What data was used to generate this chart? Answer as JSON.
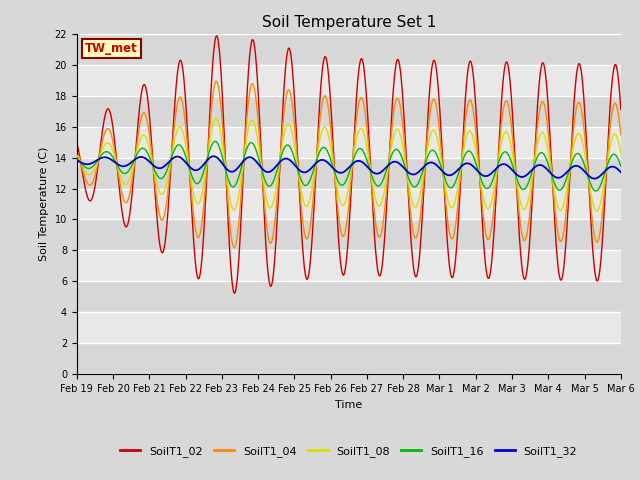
{
  "title": "Soil Temperature Set 1",
  "xlabel": "Time",
  "ylabel": "Soil Temperature (C)",
  "ylim": [
    0,
    22
  ],
  "yticks": [
    0,
    2,
    4,
    6,
    8,
    10,
    12,
    14,
    16,
    18,
    20,
    22
  ],
  "xtick_labels": [
    "Feb 19",
    "Feb 20",
    "Feb 21",
    "Feb 22",
    "Feb 23",
    "Feb 24",
    "Feb 25",
    "Feb 26",
    "Feb 27",
    "Feb 28",
    "Mar 1",
    "Mar 2",
    "Mar 3",
    "Mar 4",
    "Mar 5",
    "Mar 6"
  ],
  "n_days": 15,
  "bg_color": "#d8d8d8",
  "plot_bg": "#e8e8e8",
  "stripe_color": "#cccccc",
  "colors": {
    "SoilT1_02": "#cc0000",
    "SoilT1_04": "#ff8800",
    "SoilT1_08": "#dddd00",
    "SoilT1_16": "#00bb00",
    "SoilT1_32": "#0000cc"
  },
  "tw_met_box": {
    "text": "TW_met",
    "bg": "#ffffbb",
    "edge": "#880000",
    "text_color": "#cc0000"
  },
  "title_fontsize": 11,
  "axis_label_fontsize": 8,
  "tick_fontsize": 7,
  "legend_fontsize": 8,
  "linewidth": 1.0
}
